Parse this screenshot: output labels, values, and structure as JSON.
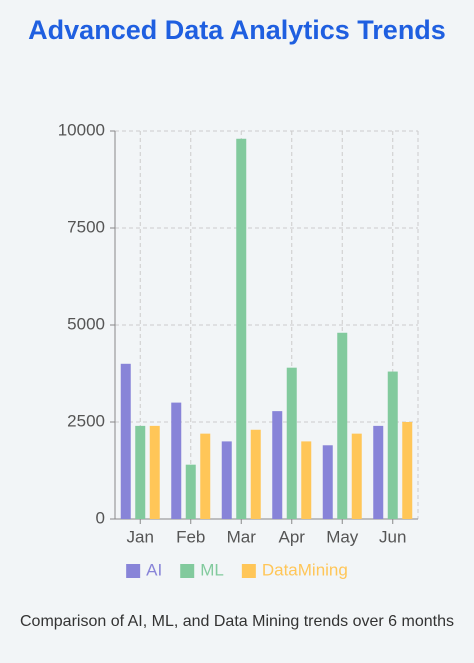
{
  "chart_data": {
    "type": "bar",
    "title": "Advanced Data Analytics Trends",
    "caption": "Comparison of AI, ML, and Data Mining trends over 6 months",
    "categories": [
      "Jan",
      "Feb",
      "Mar",
      "Apr",
      "May",
      "Jun"
    ],
    "series": [
      {
        "name": "AI",
        "color": "#8884d8",
        "values": [
          4000,
          3000,
          2000,
          2780,
          1900,
          2400
        ]
      },
      {
        "name": "ML",
        "color": "#82ca9d",
        "values": [
          2400,
          1400,
          9800,
          3900,
          4800,
          3800
        ]
      },
      {
        "name": "DataMining",
        "color": "#ffc658",
        "values": [
          2400,
          2200,
          2300,
          2000,
          2200,
          2500
        ]
      }
    ],
    "ylim": [
      0,
      10000
    ],
    "yticks": [
      0,
      2500,
      5000,
      7500,
      10000
    ],
    "grid": true
  }
}
